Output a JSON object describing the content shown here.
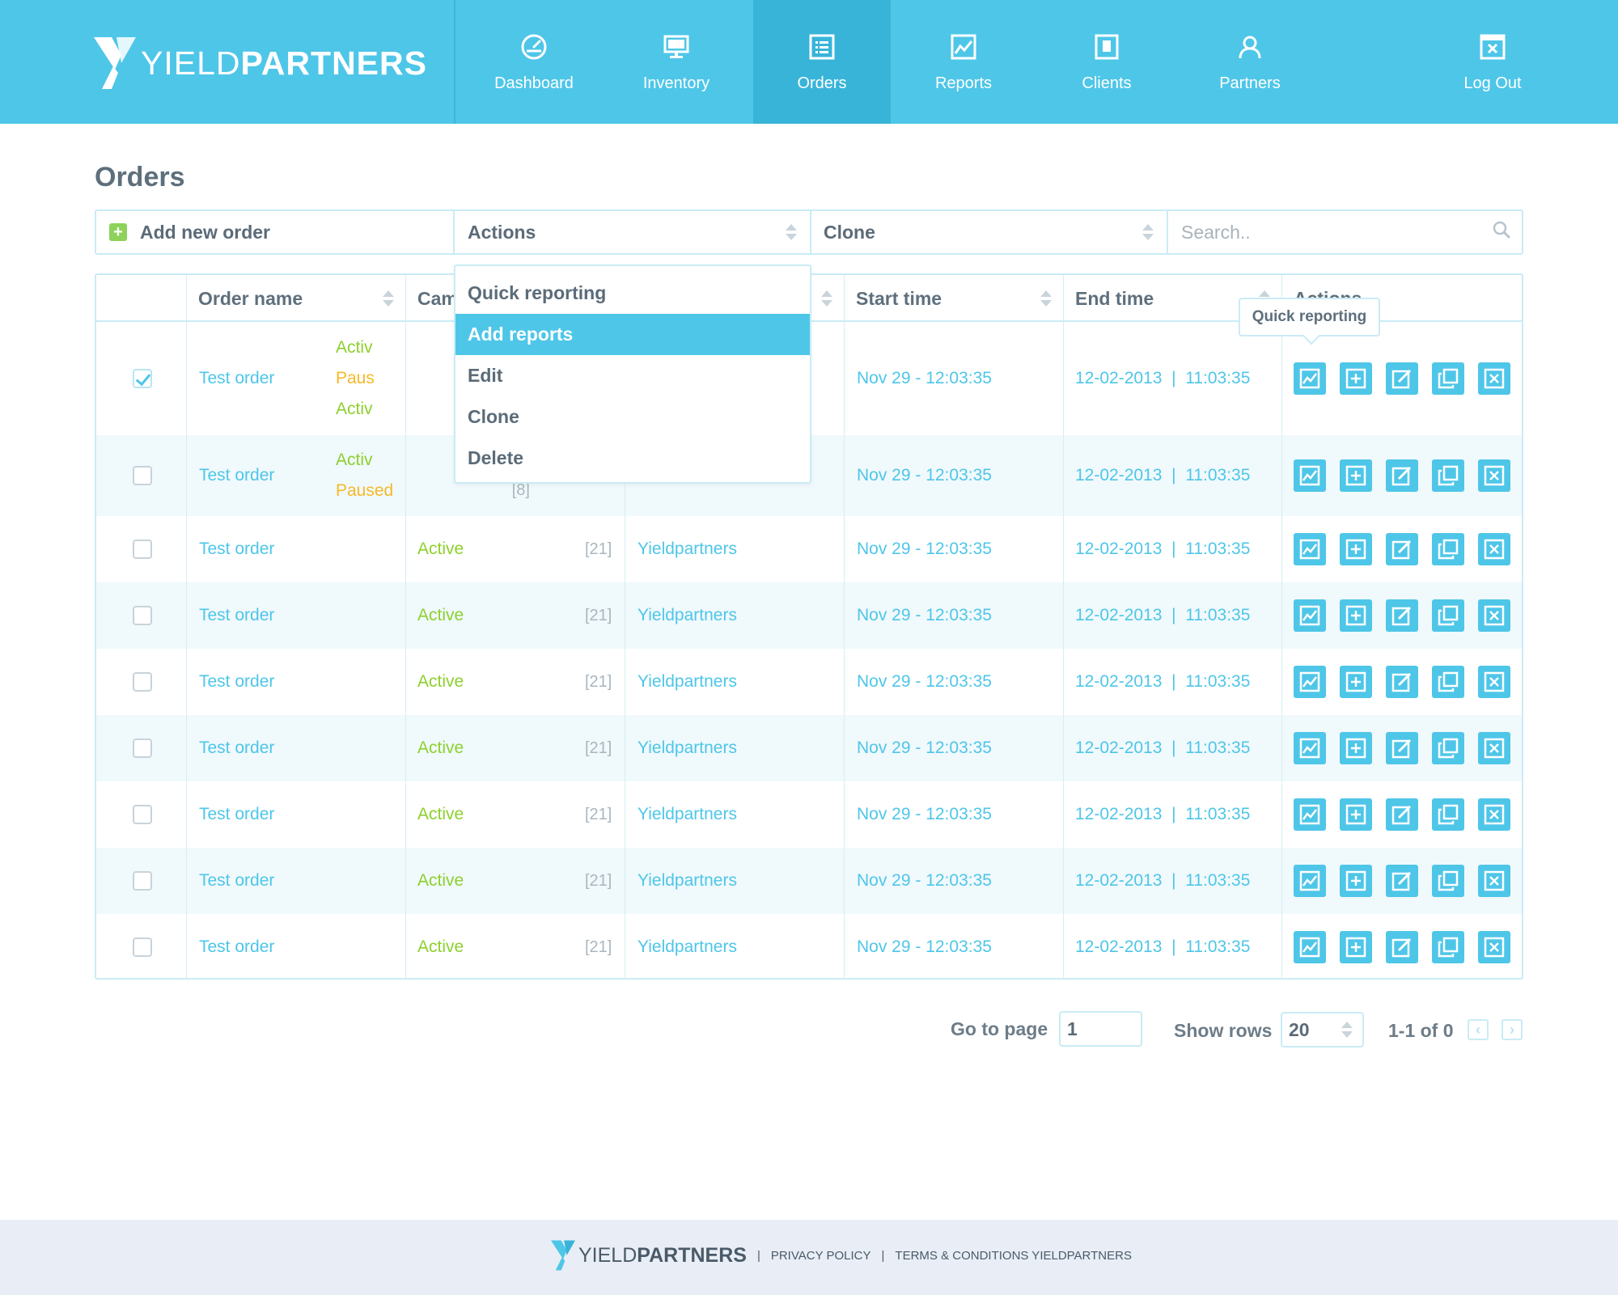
{
  "app": {
    "logo_light": "YIELD",
    "logo_bold": "PARTNERS"
  },
  "nav": [
    {
      "label": "Dashboard",
      "icon": "gauge-icon"
    },
    {
      "label": "Inventory",
      "icon": "monitor-icon"
    },
    {
      "label": "Orders",
      "icon": "list-icon",
      "active": true
    },
    {
      "label": "Reports",
      "icon": "chart-icon"
    },
    {
      "label": "Clients",
      "icon": "contact-card-icon"
    },
    {
      "label": "Partners",
      "icon": "user-icon"
    },
    {
      "label": "Log Out",
      "icon": "close-window-icon"
    }
  ],
  "page": {
    "title": "Orders"
  },
  "toolbar": {
    "add_label": "Add new order",
    "actions_label": "Actions",
    "clone_label": "Clone",
    "search_placeholder": "Search.."
  },
  "table": {
    "headers": {
      "order_name": "Order name",
      "campaign": "Cam",
      "start_time": "Start time",
      "end_time": "End time",
      "actions": "Actions"
    },
    "row1": {
      "name": "Test order",
      "campaign": [
        "Activ",
        "Paus",
        "Activ"
      ],
      "start": "Nov 29 - 12:03:35",
      "end": "12-02-2013  |  11:03:35",
      "checked": true
    },
    "row2": {
      "name": "Test order",
      "campaign": [
        "Activ",
        "Paused"
      ],
      "count": "[8]",
      "start": "Nov 29 - 12:03:35",
      "end": "12-02-2013  |  11:03:35"
    },
    "rows": [
      {
        "name": "Test order",
        "status": "Active",
        "count": "[21]",
        "partner": "Yieldpartners",
        "start": "Nov 29 - 12:03:35",
        "end": "12-02-2013  |  11:03:35"
      },
      {
        "name": "Test order",
        "status": "Active",
        "count": "[21]",
        "partner": "Yieldpartners",
        "start": "Nov 29 - 12:03:35",
        "end": "12-02-2013  |  11:03:35"
      },
      {
        "name": "Test order",
        "status": "Active",
        "count": "[21]",
        "partner": "Yieldpartners",
        "start": "Nov 29 - 12:03:35",
        "end": "12-02-2013  |  11:03:35"
      },
      {
        "name": "Test order",
        "status": "Active",
        "count": "[21]",
        "partner": "Yieldpartners",
        "start": "Nov 29 - 12:03:35",
        "end": "12-02-2013  |  11:03:35"
      },
      {
        "name": "Test order",
        "status": "Active",
        "count": "[21]",
        "partner": "Yieldpartners",
        "start": "Nov 29 - 12:03:35",
        "end": "12-02-2013  |  11:03:35"
      },
      {
        "name": "Test order",
        "status": "Active",
        "count": "[21]",
        "partner": "Yieldpartners",
        "start": "Nov 29 - 12:03:35",
        "end": "12-02-2013  |  11:03:35"
      },
      {
        "name": "Test order",
        "status": "Active",
        "count": "[21]",
        "partner": "Yieldpartners",
        "start": "Nov 29 - 12:03:35",
        "end": "12-02-2013  |  11:03:35"
      }
    ]
  },
  "dropdown": {
    "items": [
      "Quick reporting",
      "Add reports",
      "Edit",
      "Clone",
      "Delete"
    ],
    "highlighted": "Add reports"
  },
  "tooltip": {
    "text": "Quick reporting"
  },
  "pagination": {
    "goto_label": "Go to page",
    "page_value": "1",
    "rows_label": "Show rows",
    "rows_value": "20",
    "range": "1-1 of 0",
    "prev": "‹",
    "next": "›"
  },
  "footer": {
    "logo_light": "YIELD",
    "logo_bold": "PARTNERS",
    "sep1": "|",
    "privacy": "PRIVACY POLICY",
    "sep2": "|",
    "terms": "TERMS & CONDITIONS YIELDPARTNERS"
  },
  "colors": {
    "brand": "#4ec6e8",
    "brand_dark": "#39b4d9",
    "active": "#8dd02e",
    "paused": "#f6b928",
    "footer_bg": "#e9eef6"
  }
}
